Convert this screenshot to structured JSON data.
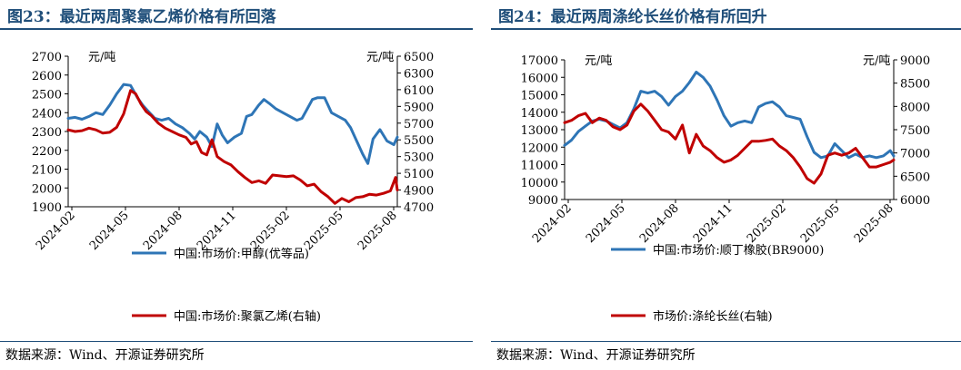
{
  "charts": [
    {
      "panel_title": "图23：最近两周聚氯乙烯价格有所回落",
      "source": "数据来源：Wind、开源证券研究所",
      "chart_data": {
        "type": "line",
        "title": "图23：最近两周聚氯乙烯价格有所回落",
        "left_unit": "元/吨",
        "right_unit": "元/吨",
        "left_ylim": [
          1900,
          2700
        ],
        "left_ticks": [
          "1900",
          "2000",
          "2100",
          "2200",
          "2300",
          "2400",
          "2500",
          "2600",
          "2700"
        ],
        "right_ylim": [
          4700,
          6500
        ],
        "right_ticks": [
          "4700",
          "4900",
          "5100",
          "5300",
          "5500",
          "5700",
          "5900",
          "6100",
          "6300",
          "6500"
        ],
        "x_ticks": [
          "2024-02",
          "2024-05",
          "2024-08",
          "2024-11",
          "2025-02",
          "2025-05",
          "2025-08"
        ],
        "x_range": [
          0,
          19
        ],
        "grid": false,
        "series": [
          {
            "name": "中国:市场价:甲醇(优等品)",
            "axis": "left",
            "color": "#2e75b6",
            "x": [
              0,
              0.4,
              0.8,
              1.2,
              1.6,
              2,
              2.4,
              2.8,
              3.2,
              3.6,
              4,
              4.3,
              4.6,
              5,
              5.4,
              5.8,
              6.2,
              6.6,
              7,
              7.3,
              7.6,
              8,
              8.3,
              8.6,
              8.9,
              9.2,
              9.6,
              10,
              10.3,
              10.6,
              11,
              11.3,
              11.6,
              12,
              12.4,
              12.8,
              13.2,
              13.5,
              13.8,
              14.1,
              14.4,
              14.8,
              15.2,
              15.6,
              16,
              16.3,
              16.6,
              17,
              17.3,
              17.6,
              18,
              18.4,
              18.8,
              19
            ],
            "y": [
              2370,
              2375,
              2365,
              2380,
              2400,
              2390,
              2440,
              2500,
              2550,
              2545,
              2480,
              2440,
              2410,
              2370,
              2360,
              2370,
              2340,
              2320,
              2290,
              2260,
              2300,
              2270,
              2220,
              2340,
              2280,
              2240,
              2270,
              2290,
              2380,
              2390,
              2440,
              2470,
              2450,
              2420,
              2400,
              2380,
              2360,
              2370,
              2420,
              2470,
              2480,
              2480,
              2400,
              2380,
              2360,
              2320,
              2260,
              2180,
              2130,
              2260,
              2310,
              2250,
              2230,
              2270
            ]
          },
          {
            "name": "中国:市场价:聚氯乙烯(右轴)",
            "axis": "right",
            "color": "#c00000",
            "x": [
              0,
              0.4,
              0.8,
              1.2,
              1.6,
              2,
              2.4,
              2.8,
              3.2,
              3.6,
              3.9,
              4.2,
              4.5,
              4.8,
              5.2,
              5.6,
              6,
              6.4,
              6.8,
              7.1,
              7.4,
              7.7,
              8,
              8.3,
              8.6,
              9,
              9.4,
              9.8,
              10.2,
              10.6,
              11,
              11.4,
              11.8,
              12.2,
              12.6,
              13,
              13.4,
              13.8,
              14.2,
              14.6,
              15,
              15.4,
              15.8,
              16.2,
              16.6,
              17,
              17.4,
              17.8,
              18.2,
              18.6,
              18.9,
              19
            ],
            "y": [
              5620,
              5600,
              5610,
              5640,
              5620,
              5580,
              5590,
              5650,
              5810,
              6090,
              6050,
              5930,
              5840,
              5790,
              5700,
              5640,
              5600,
              5560,
              5530,
              5450,
              5480,
              5350,
              5320,
              5500,
              5300,
              5240,
              5200,
              5120,
              5050,
              4990,
              5010,
              4980,
              5080,
              5070,
              5060,
              5070,
              5020,
              4950,
              4970,
              4880,
              4820,
              4740,
              4800,
              4760,
              4810,
              4820,
              4850,
              4840,
              4860,
              4890,
              5050,
              4900
            ]
          }
        ]
      }
    },
    {
      "panel_title": "图24：最近两周涤纶长丝价格有所回升",
      "source": "数据来源：Wind、开源证券研究所",
      "chart_data": {
        "type": "line",
        "title": "图24：最近两周涤纶长丝价格有所回升",
        "left_unit": "元/吨",
        "right_unit": "元/吨",
        "left_ylim": [
          9000,
          17000
        ],
        "left_ticks": [
          "9000",
          "10000",
          "11000",
          "12000",
          "13000",
          "14000",
          "15000",
          "16000",
          "17000"
        ],
        "right_ylim": [
          6000,
          9000
        ],
        "right_ticks": [
          "6000",
          "6500",
          "7000",
          "7500",
          "8000",
          "8500",
          "9000"
        ],
        "x_ticks": [
          "2024-02",
          "2024-05",
          "2024-08",
          "2024-11",
          "2025-02",
          "2025-05",
          "2025-08"
        ],
        "x_range": [
          0,
          19
        ],
        "grid": false,
        "series": [
          {
            "name": "中国:市场价:顺丁橡胶(BR9000)",
            "axis": "left",
            "color": "#2e75b6",
            "x": [
              0,
              0.4,
              0.8,
              1.2,
              1.6,
              2,
              2.4,
              2.8,
              3.2,
              3.6,
              4,
              4.4,
              4.8,
              5.2,
              5.6,
              6,
              6.4,
              6.8,
              7.2,
              7.6,
              8,
              8.4,
              8.8,
              9.2,
              9.6,
              10,
              10.4,
              10.8,
              11.2,
              11.6,
              12,
              12.4,
              12.8,
              13.2,
              13.6,
              14,
              14.4,
              14.8,
              15.2,
              15.6,
              16,
              16.4,
              16.8,
              17.2,
              17.6,
              18,
              18.4,
              18.8,
              19
            ],
            "y": [
              12100,
              12400,
              12900,
              13200,
              13500,
              13600,
              13500,
              13300,
              13100,
              13400,
              14200,
              15200,
              15100,
              15200,
              14900,
              14400,
              14900,
              15200,
              15700,
              16300,
              16000,
              15500,
              14700,
              13800,
              13200,
              13400,
              13500,
              13400,
              14300,
              14500,
              14600,
              14300,
              13800,
              13700,
              13600,
              12600,
              11700,
              11400,
              11500,
              12200,
              11800,
              11400,
              11600,
              11400,
              11500,
              11400,
              11500,
              11800,
              11500
            ]
          },
          {
            "name": "市场价:涤纶长丝(右轴)",
            "axis": "right",
            "color": "#c00000",
            "x": [
              0,
              0.4,
              0.8,
              1.2,
              1.6,
              2,
              2.4,
              2.8,
              3.2,
              3.6,
              4,
              4.4,
              4.8,
              5.2,
              5.6,
              6,
              6.4,
              6.8,
              7.2,
              7.6,
              8,
              8.4,
              8.8,
              9.2,
              9.6,
              10,
              10.4,
              10.8,
              11.2,
              11.6,
              12,
              12.4,
              12.8,
              13.2,
              13.6,
              14,
              14.4,
              14.8,
              15.2,
              15.6,
              16,
              16.4,
              16.8,
              17.2,
              17.6,
              18,
              18.4,
              18.8,
              19
            ],
            "y": [
              7650,
              7700,
              7800,
              7850,
              7650,
              7750,
              7700,
              7560,
              7500,
              7600,
              7900,
              8050,
              7900,
              7700,
              7500,
              7450,
              7300,
              7600,
              7000,
              7400,
              7150,
              7050,
              6900,
              6800,
              6850,
              6950,
              7100,
              7250,
              7250,
              7270,
              7300,
              7150,
              7050,
              6900,
              6700,
              6450,
              6350,
              6550,
              6950,
              7000,
              6950,
              7000,
              7100,
              6900,
              6700,
              6700,
              6750,
              6800,
              6850
            ]
          }
        ]
      }
    }
  ]
}
